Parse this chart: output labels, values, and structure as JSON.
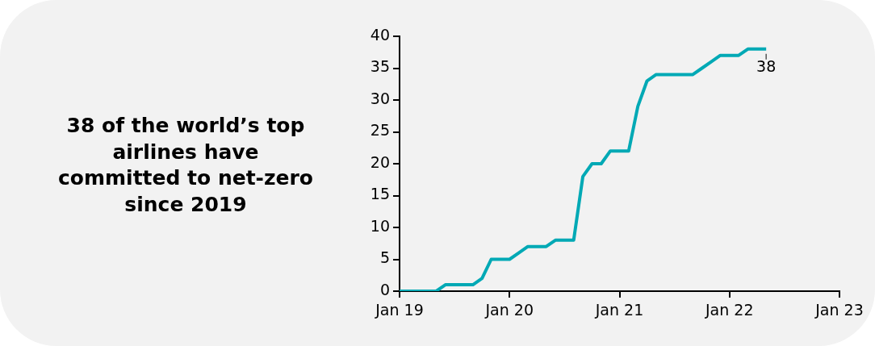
{
  "chart_data": {
    "type": "line",
    "title": "38 of the world’s top airlines have committed to net-zero since 2019",
    "x": [
      "2019-01",
      "2019-05",
      "2019-06",
      "2019-09",
      "2019-10",
      "2019-11",
      "2020-01",
      "2020-02",
      "2020-03",
      "2020-05",
      "2020-06",
      "2020-08",
      "2020-09",
      "2020-10",
      "2020-11",
      "2020-12",
      "2021-02",
      "2021-03",
      "2021-04",
      "2021-05",
      "2021-09",
      "2021-10",
      "2021-11",
      "2021-12",
      "2022-02",
      "2022-03",
      "2022-05"
    ],
    "series": [
      {
        "color": "#00a9b5",
        "values": [
          0,
          0,
          1,
          1,
          2,
          5,
          5,
          6,
          7,
          7,
          8,
          8,
          18,
          20,
          20,
          22,
          22,
          29,
          33,
          34,
          34,
          35,
          36,
          37,
          37,
          38,
          38
        ],
        "value_labels": [
          null,
          null,
          null,
          null,
          null,
          null,
          null,
          null,
          null,
          null,
          null,
          null,
          null,
          null,
          null,
          null,
          null,
          null,
          null,
          null,
          null,
          null,
          null,
          null,
          null,
          null,
          "38"
        ]
      }
    ],
    "xlim": [
      "2019-01",
      "2023-01"
    ],
    "xticks": [
      {
        "value": "2019-01",
        "label": "Jan 19"
      },
      {
        "value": "2020-01",
        "label": "Jan 20"
      },
      {
        "value": "2021-01",
        "label": "Jan 21"
      },
      {
        "value": "2022-01",
        "label": "Jan 22"
      },
      {
        "value": "2023-01",
        "label": "Jan 23"
      }
    ],
    "ylim": [
      0,
      40
    ],
    "yticks": [
      0,
      5,
      10,
      15,
      20,
      25,
      30,
      35,
      40
    ],
    "grid": false,
    "legend": false,
    "marker": "none",
    "line_style": "solid"
  }
}
